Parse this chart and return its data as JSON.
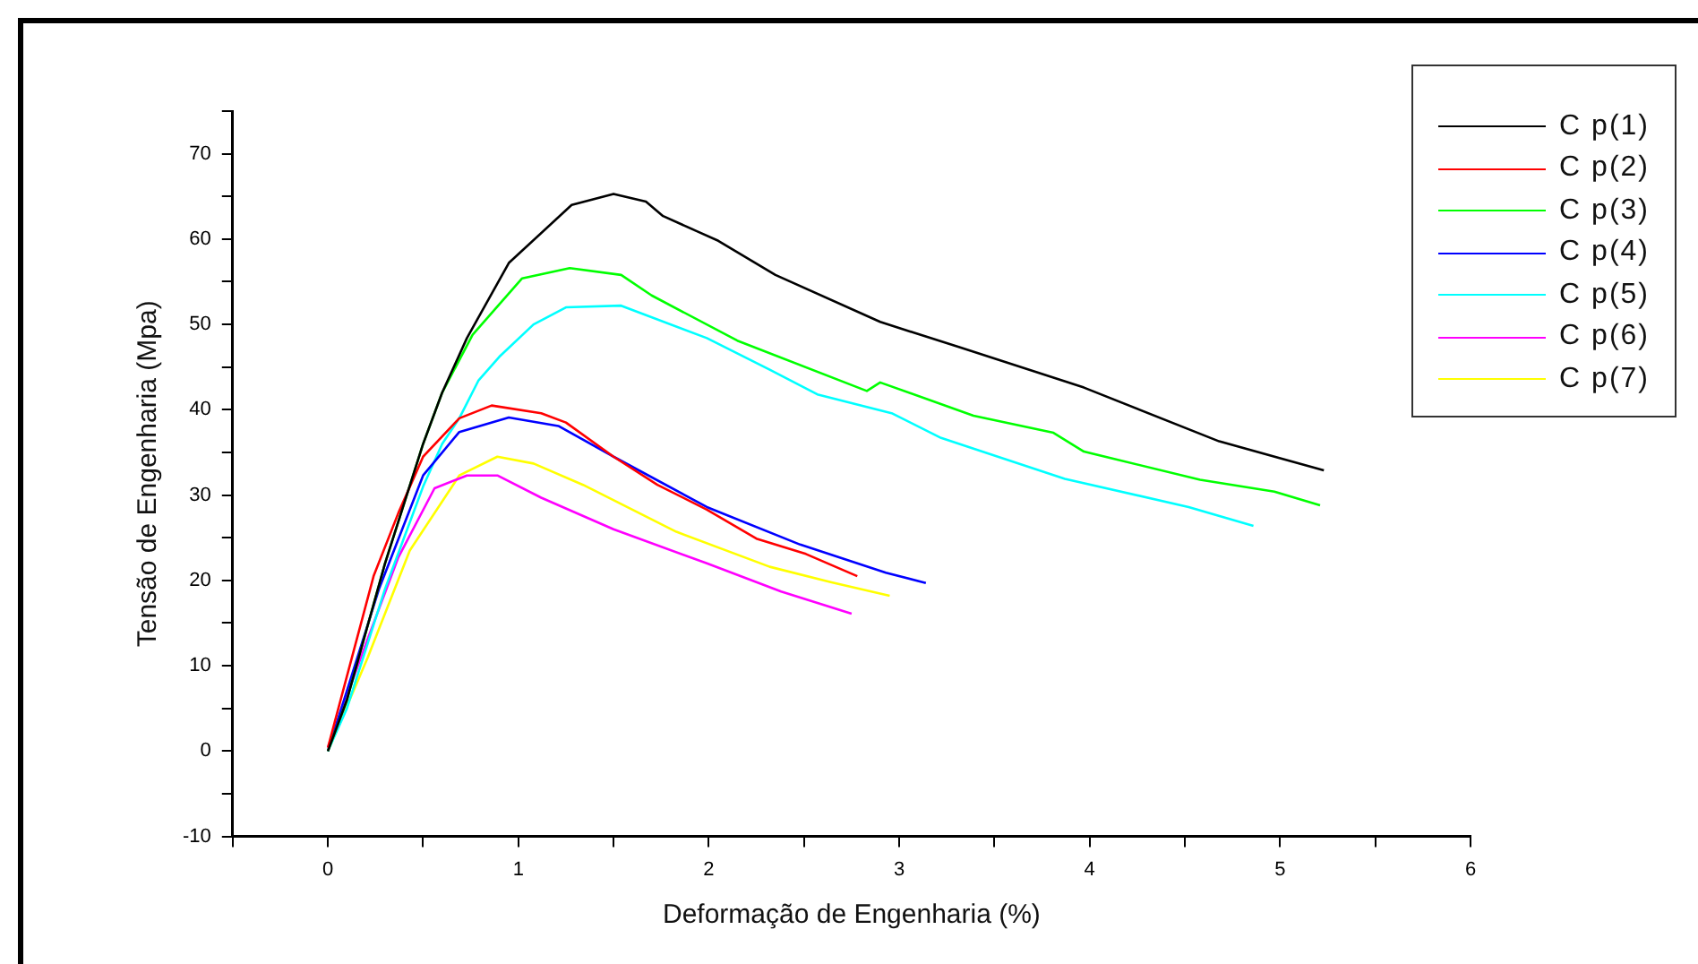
{
  "chart_data": {
    "type": "line",
    "xlabel": "Deformação de Engenharia (%)",
    "ylabel": "Tensão de Engenharia (Mpa)",
    "xlim": [
      -0.5,
      6
    ],
    "xticks": [
      {
        "value": -0.5,
        "label": null
      },
      0,
      {
        "value": 0.5,
        "label": null
      },
      1,
      {
        "value": 1.5,
        "label": null
      },
      2,
      {
        "value": 2.5,
        "label": null
      },
      3,
      {
        "value": 3.5,
        "label": null
      },
      4,
      {
        "value": 4.5,
        "label": null
      },
      5,
      {
        "value": 5.5,
        "label": null
      },
      6
    ],
    "ylim": [
      -10,
      75
    ],
    "yticks": [
      -10,
      {
        "value": -5,
        "label": null
      },
      0,
      {
        "value": 5,
        "label": null
      },
      10,
      {
        "value": 15,
        "label": null
      },
      20,
      {
        "value": 25,
        "label": null
      },
      30,
      {
        "value": 35,
        "label": null
      },
      40,
      {
        "value": 45,
        "label": null
      },
      50,
      {
        "value": 55,
        "label": null
      },
      60,
      {
        "value": 65,
        "label": null
      },
      70,
      {
        "value": 75,
        "label": null
      }
    ],
    "grid": false,
    "legend": "top right",
    "marker": "none",
    "line_style": "solid",
    "series": [
      {
        "name": "C p(1)",
        "color": "#000000",
        "x": [
          0,
          0.1,
          0.2,
          0.3,
          0.4,
          0.5,
          0.6,
          0.73,
          0.95,
          1.28,
          1.5,
          1.67,
          1.76,
          1.93,
          2.05,
          2.35,
          2.9,
          3.32,
          3.97,
          4.68,
          5.23
        ],
        "values": [
          0,
          6,
          14,
          22,
          29,
          36,
          42,
          48.4,
          57.2,
          64,
          65.3,
          64.4,
          62.7,
          61,
          59.8,
          55.8,
          50.3,
          47.3,
          42.6,
          36.3,
          32.9
        ]
      },
      {
        "name": "C p(2)",
        "color": "#ff0000",
        "x": [
          0,
          0.24,
          0.37,
          0.5,
          0.69,
          0.86,
          1.12,
          1.25,
          1.5,
          1.73,
          1.99,
          2.25,
          2.51,
          2.78
        ],
        "values": [
          0.4,
          20.5,
          27.9,
          34.5,
          39,
          40.5,
          39.6,
          38.5,
          34.5,
          31.2,
          28.3,
          24.9,
          23.1,
          20.5
        ]
      },
      {
        "name": "C p(3)",
        "color": "#00ff00",
        "x": [
          0,
          0.1,
          0.2,
          0.3,
          0.4,
          0.5,
          0.6,
          0.76,
          1.02,
          1.27,
          1.54,
          1.7,
          2.15,
          2.83,
          2.9,
          3.39,
          3.81,
          3.97,
          4.58,
          4.97,
          5.21
        ],
        "values": [
          0,
          6,
          14,
          22,
          29,
          36,
          42,
          48.8,
          55.4,
          56.6,
          55.8,
          53.4,
          48.1,
          42.2,
          43.2,
          39.3,
          37.3,
          35.1,
          31.8,
          30.4,
          28.8
        ]
      },
      {
        "name": "C p(4)",
        "color": "#0000ff",
        "x": [
          0,
          0.27,
          0.5,
          0.69,
          0.95,
          1.21,
          1.5,
          1.99,
          2.48,
          2.93,
          3.14
        ],
        "values": [
          0,
          19.1,
          32.3,
          37.4,
          39.1,
          38.1,
          34.5,
          28.6,
          24.2,
          20.9,
          19.7
        ]
      },
      {
        "name": "C p(5)",
        "color": "#00ffff",
        "x": [
          0,
          0.1,
          0.2,
          0.3,
          0.4,
          0.5,
          0.6,
          0.69,
          0.79,
          0.9,
          1.08,
          1.25,
          1.54,
          1.99,
          2.32,
          2.57,
          2.96,
          3.22,
          3.87,
          4.52,
          4.86
        ],
        "values": [
          0,
          5,
          12,
          19,
          25,
          31,
          36,
          39,
          43.4,
          46.2,
          50,
          52,
          52.2,
          48.4,
          44.7,
          41.8,
          39.6,
          36.7,
          31.9,
          28.6,
          26.4
        ]
      },
      {
        "name": "C p(6)",
        "color": "#ff00ff",
        "x": [
          0,
          0.21,
          0.37,
          0.56,
          0.73,
          0.89,
          1.12,
          1.5,
          1.99,
          2.38,
          2.75
        ],
        "values": [
          0.4,
          13.2,
          22.7,
          30.8,
          32.3,
          32.3,
          29.7,
          26,
          22,
          18.7,
          16.1
        ]
      },
      {
        "name": "C p(7)",
        "color": "#ffff00",
        "x": [
          0,
          0.21,
          0.43,
          0.69,
          0.89,
          1.08,
          1.34,
          1.83,
          2.32,
          2.64,
          2.95
        ],
        "values": [
          0,
          11,
          23.5,
          32.3,
          34.5,
          33.7,
          31.2,
          25.7,
          21.6,
          19.8,
          18.2
        ]
      }
    ]
  }
}
